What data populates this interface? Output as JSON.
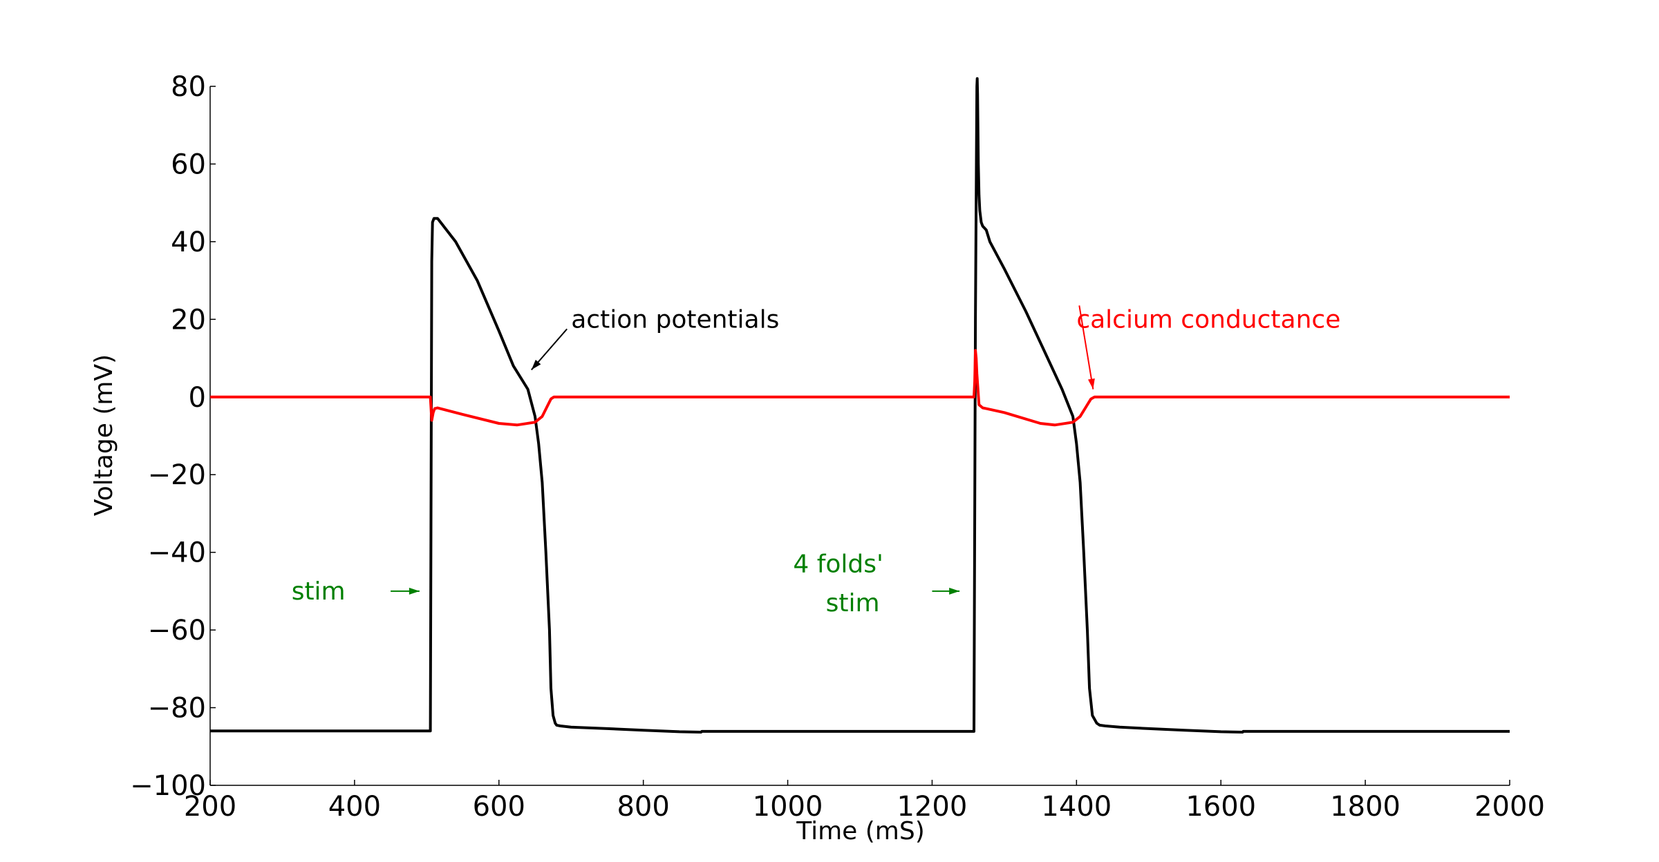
{
  "chart_data": {
    "type": "line",
    "title": "",
    "xlabel": "Time (mS)",
    "ylabel": "Voltage (mV)",
    "xlim": [
      200,
      2000
    ],
    "ylim": [
      -100,
      80
    ],
    "xticks": [
      200,
      400,
      600,
      800,
      1000,
      1200,
      1400,
      1600,
      1800,
      2000
    ],
    "yticks": [
      80,
      60,
      40,
      20,
      0,
      -20,
      -40,
      -60,
      -80,
      -100
    ],
    "grid": false,
    "series": [
      {
        "color": "#000000",
        "x": [
          200,
          505,
          507,
          508,
          510,
          515,
          540,
          570,
          600,
          620,
          640,
          650,
          655,
          660,
          665,
          670,
          672,
          675,
          678,
          680,
          685,
          700,
          750,
          800,
          850,
          880,
          881,
          1000,
          1200,
          1258,
          1260,
          1262,
          1262.5,
          1263,
          1264,
          1265,
          1266,
          1268,
          1270,
          1275,
          1280,
          1300,
          1330,
          1360,
          1380,
          1395,
          1400,
          1405,
          1410,
          1415,
          1418,
          1422,
          1428,
          1432,
          1440,
          1460,
          1500,
          1550,
          1600,
          1630,
          1631,
          1800,
          2000
        ],
        "y": [
          -86,
          -86,
          35,
          45,
          46,
          46,
          40,
          30,
          17,
          8,
          2,
          -5,
          -12,
          -22,
          -40,
          -60,
          -75,
          -82,
          -84,
          -84.5,
          -84.7,
          -85,
          -85.4,
          -85.8,
          -86.2,
          -86.3,
          -86.1,
          -86.1,
          -86.1,
          -86.1,
          20,
          80,
          82,
          78,
          60,
          52,
          48,
          45,
          44,
          43,
          40,
          33,
          22,
          10,
          2,
          -5,
          -12,
          -22,
          -40,
          -60,
          -75,
          -82,
          -84,
          -84.5,
          -84.7,
          -85,
          -85.4,
          -85.8,
          -86.2,
          -86.3,
          -86.1,
          -86.1,
          -86.1
        ]
      },
      {
        "color": "#ff0000",
        "x": [
          200,
          505,
          506,
          507,
          509,
          511,
          515,
          550,
          600,
          625,
          650,
          660,
          668,
          672,
          676,
          680,
          700,
          1000,
          1258,
          1259,
          1260,
          1261,
          1262,
          1265,
          1270,
          1275,
          1300,
          1350,
          1370,
          1395,
          1405,
          1415,
          1420,
          1425,
          1440,
          2000
        ],
        "y": [
          0,
          0,
          -3,
          -6,
          -4,
          -3,
          -2.8,
          -4.5,
          -6.8,
          -7.2,
          -6.5,
          -5,
          -2,
          -0.5,
          0,
          0,
          0,
          0,
          0,
          4,
          12,
          10,
          6,
          -2,
          -2.8,
          -3,
          -4,
          -6.8,
          -7.2,
          -6.5,
          -5,
          -2,
          -0.5,
          0,
          0,
          0
        ]
      }
    ],
    "annotations": [
      {
        "text": "action potentials",
        "color": "#000000",
        "x": 700,
        "y": 20,
        "arrow_to": [
          645,
          7
        ]
      },
      {
        "text": "calcium conductance",
        "color": "#ff0000",
        "x": 1400,
        "y": 20,
        "arrow_to": [
          1423,
          2
        ]
      },
      {
        "text": "stim",
        "color": "#008000",
        "x": 350,
        "y": -50,
        "arrow_from": [
          450,
          -50
        ],
        "arrow_to": [
          490,
          -50
        ]
      },
      {
        "text": "4 folds'",
        "color": "#008000",
        "x": 1070,
        "y": -43,
        "arrow_from": [
          1200,
          -50
        ],
        "arrow_to": [
          1238,
          -50
        ]
      },
      {
        "text": "stim",
        "color": "#008000",
        "x": 1090,
        "y": -53
      }
    ]
  }
}
